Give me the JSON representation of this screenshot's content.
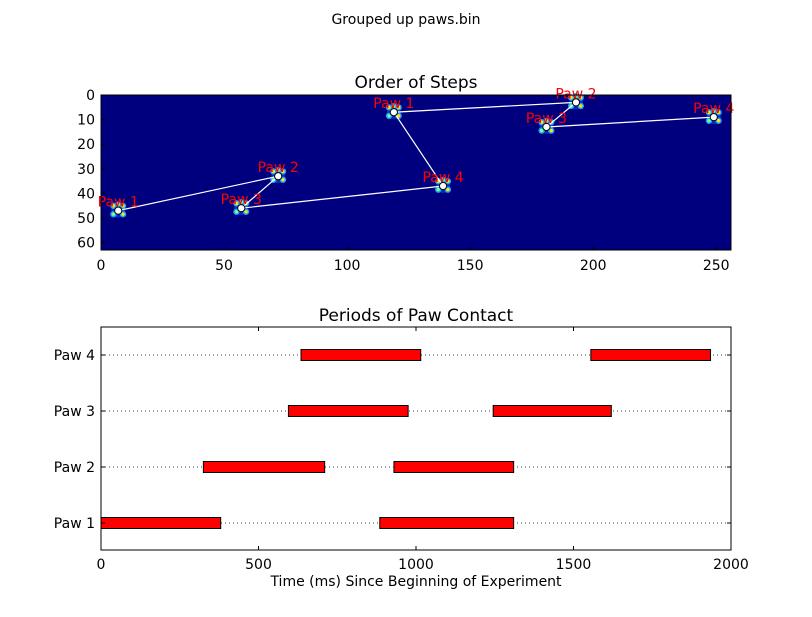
{
  "figure": {
    "suptitle": "Grouped up paws.bin"
  },
  "colors": {
    "heatmap_bg": "#00007f",
    "path_line": "#ffffff",
    "paw_label": "#ff0000",
    "bar_fill": "#ff0000",
    "axis": "#000000",
    "grid": "#000000"
  },
  "chart_data": [
    {
      "type": "heatmap",
      "title": "Order of Steps",
      "xlabel": "",
      "ylabel": "",
      "xlim": [
        0,
        256
      ],
      "ylim": [
        63,
        0
      ],
      "xticks": [
        0,
        50,
        100,
        150,
        200,
        250
      ],
      "yticks": [
        0,
        10,
        20,
        30,
        40,
        50,
        60
      ],
      "steps": [
        {
          "label": "Paw 1",
          "x": 7,
          "y": 47
        },
        {
          "label": "Paw 2",
          "x": 72,
          "y": 33
        },
        {
          "label": "Paw 3",
          "x": 57,
          "y": 46
        },
        {
          "label": "Paw 4",
          "x": 139,
          "y": 37
        },
        {
          "label": "Paw 1",
          "x": 119,
          "y": 7
        },
        {
          "label": "Paw 2",
          "x": 193,
          "y": 3
        },
        {
          "label": "Paw 3",
          "x": 181,
          "y": 13
        },
        {
          "label": "Paw 4",
          "x": 249,
          "y": 9
        }
      ]
    },
    {
      "type": "bar",
      "orientation": "horizontal",
      "title": "Periods of Paw Contact",
      "xlabel": "Time (ms) Since Beginning of Experiment",
      "ylabel": "",
      "xlim": [
        0,
        2000
      ],
      "xticks": [
        0,
        500,
        1000,
        1500,
        2000
      ],
      "categories": [
        "Paw 1",
        "Paw 2",
        "Paw 3",
        "Paw 4"
      ],
      "grid": "horizontal dotted",
      "intervals": [
        {
          "paw": "Paw 1",
          "start": 0,
          "end": 380
        },
        {
          "paw": "Paw 1",
          "start": 885,
          "end": 1310
        },
        {
          "paw": "Paw 2",
          "start": 325,
          "end": 710
        },
        {
          "paw": "Paw 2",
          "start": 930,
          "end": 1310
        },
        {
          "paw": "Paw 3",
          "start": 595,
          "end": 975
        },
        {
          "paw": "Paw 3",
          "start": 1245,
          "end": 1620
        },
        {
          "paw": "Paw 4",
          "start": 635,
          "end": 1015
        },
        {
          "paw": "Paw 4",
          "start": 1555,
          "end": 1935
        }
      ]
    }
  ]
}
